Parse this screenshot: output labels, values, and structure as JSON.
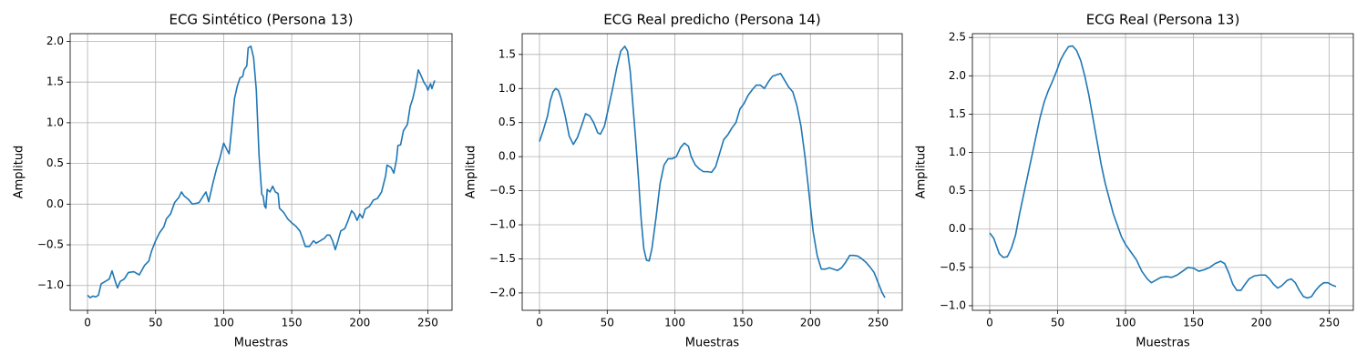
{
  "chart_data": [
    {
      "type": "line",
      "title": "ECG Sintético (Persona 13)",
      "xlabel": "Muestras",
      "ylabel": "Amplitud",
      "color": "#1f77b4",
      "grid": true,
      "x": [
        0,
        2,
        4,
        6,
        8,
        10,
        13,
        16,
        18,
        20,
        22,
        24,
        27,
        30,
        34,
        38,
        42,
        45,
        47,
        50,
        53,
        56,
        58,
        61,
        64,
        67,
        69,
        71,
        74,
        77,
        80,
        82,
        85,
        87,
        89,
        92,
        95,
        97,
        100,
        103,
        104,
        106,
        108,
        110,
        112,
        114,
        115,
        117,
        118,
        120,
        122,
        124,
        126,
        128,
        129,
        130,
        131,
        132,
        134,
        136,
        138,
        140,
        141,
        144,
        147,
        150,
        153,
        156,
        158,
        160,
        163,
        166,
        168,
        171,
        174,
        176,
        178,
        180,
        182,
        184,
        186,
        189,
        191,
        194,
        196,
        198,
        200,
        202,
        204,
        207,
        210,
        213,
        216,
        219,
        220,
        223,
        225,
        227,
        228,
        230,
        232,
        235,
        237,
        239,
        241,
        243,
        245,
        247,
        249,
        250,
        252,
        253,
        255
      ],
      "values": [
        -1.12,
        -1.15,
        -1.13,
        -1.14,
        -1.12,
        -0.98,
        -0.95,
        -0.92,
        -0.82,
        -0.93,
        -1.03,
        -0.95,
        -0.92,
        -0.84,
        -0.83,
        -0.87,
        -0.75,
        -0.7,
        -0.58,
        -0.45,
        -0.35,
        -0.28,
        -0.18,
        -0.12,
        0.02,
        0.08,
        0.15,
        0.1,
        0.06,
        0.0,
        0.01,
        0.02,
        0.1,
        0.15,
        0.03,
        0.25,
        0.45,
        0.55,
        0.75,
        0.65,
        0.62,
        0.95,
        1.3,
        1.45,
        1.55,
        1.57,
        1.65,
        1.7,
        1.92,
        1.94,
        1.8,
        1.4,
        0.6,
        0.12,
        0.1,
        -0.02,
        -0.05,
        0.18,
        0.15,
        0.22,
        0.15,
        0.13,
        -0.05,
        -0.1,
        -0.18,
        -0.23,
        -0.27,
        -0.33,
        -0.42,
        -0.52,
        -0.52,
        -0.45,
        -0.48,
        -0.45,
        -0.42,
        -0.38,
        -0.38,
        -0.45,
        -0.56,
        -0.45,
        -0.33,
        -0.3,
        -0.22,
        -0.08,
        -0.12,
        -0.2,
        -0.12,
        -0.17,
        -0.06,
        -0.03,
        0.05,
        0.07,
        0.15,
        0.35,
        0.48,
        0.45,
        0.38,
        0.55,
        0.72,
        0.73,
        0.9,
        0.98,
        1.2,
        1.3,
        1.45,
        1.65,
        1.58,
        1.5,
        1.45,
        1.4,
        1.48,
        1.42,
        1.52
      ],
      "xlim": [
        -12.75,
        267.75
      ],
      "xticks": [
        0,
        50,
        100,
        150,
        200,
        250
      ],
      "ylim": [
        -1.305,
        2.095
      ],
      "yticks": [
        {
          "value": -1.0,
          "label": "−1.0"
        },
        {
          "value": -0.5,
          "label": "−0.5"
        },
        {
          "value": 0.0,
          "label": "0.0"
        },
        0.5,
        {
          "value": 1.0,
          "label": "1.0"
        },
        1.5,
        {
          "value": 2.0,
          "label": "2.0"
        }
      ]
    },
    {
      "type": "line",
      "title": "ECG Real predicho (Persona 14)",
      "xlabel": "Muestras",
      "ylabel": "Amplitud",
      "color": "#1f77b4",
      "grid": true,
      "x": [
        0,
        3,
        6,
        8,
        10,
        12,
        14,
        16,
        19,
        22,
        25,
        28,
        31,
        34,
        37,
        40,
        43,
        45,
        48,
        51,
        54,
        57,
        60,
        63,
        65,
        67,
        69,
        71,
        73,
        75,
        77,
        79,
        81,
        83,
        86,
        89,
        92,
        95,
        98,
        101,
        104,
        107,
        110,
        112,
        115,
        118,
        121,
        124,
        127,
        130,
        133,
        136,
        139,
        142,
        145,
        148,
        151,
        154,
        157,
        160,
        163,
        166,
        169,
        172,
        175,
        178,
        181,
        184,
        187,
        190,
        193,
        196,
        199,
        202,
        205,
        208,
        211,
        214,
        217,
        220,
        223,
        226,
        229,
        232,
        235,
        238,
        241,
        244,
        247,
        250,
        253,
        255
      ],
      "values": [
        0.22,
        0.4,
        0.6,
        0.82,
        0.95,
        1.0,
        0.97,
        0.85,
        0.6,
        0.3,
        0.18,
        0.28,
        0.45,
        0.63,
        0.6,
        0.5,
        0.35,
        0.33,
        0.45,
        0.72,
        1.0,
        1.3,
        1.55,
        1.62,
        1.55,
        1.25,
        0.75,
        0.25,
        -0.3,
        -0.9,
        -1.35,
        -1.52,
        -1.53,
        -1.35,
        -0.9,
        -0.4,
        -0.12,
        -0.03,
        -0.03,
        0.0,
        0.13,
        0.2,
        0.15,
        0.0,
        -0.12,
        -0.18,
        -0.22,
        -0.22,
        -0.23,
        -0.15,
        0.05,
        0.25,
        0.32,
        0.42,
        0.5,
        0.7,
        0.78,
        0.9,
        0.98,
        1.05,
        1.05,
        1.0,
        1.1,
        1.18,
        1.2,
        1.22,
        1.12,
        1.02,
        0.95,
        0.75,
        0.45,
        0.0,
        -0.55,
        -1.1,
        -1.45,
        -1.65,
        -1.65,
        -1.63,
        -1.65,
        -1.67,
        -1.63,
        -1.55,
        -1.45,
        -1.45,
        -1.46,
        -1.5,
        -1.55,
        -1.62,
        -1.7,
        -1.85,
        -2.0,
        -2.07
      ],
      "xlim": [
        -12.75,
        267.75
      ],
      "xticks": [
        0,
        50,
        100,
        150,
        200,
        250
      ],
      "ylim": [
        -2.255,
        1.805
      ],
      "yticks": [
        {
          "value": -2.0,
          "label": "−2.0"
        },
        {
          "value": -1.5,
          "label": "−1.5"
        },
        {
          "value": -1.0,
          "label": "−1.0"
        },
        {
          "value": -0.5,
          "label": "−0.5"
        },
        {
          "value": 0.0,
          "label": "0.0"
        },
        0.5,
        {
          "value": 1.0,
          "label": "1.0"
        },
        1.5
      ]
    },
    {
      "type": "line",
      "title": "ECG Real (Persona 13)",
      "xlabel": "Muestras",
      "ylabel": "Amplitud",
      "color": "#1f77b4",
      "grid": true,
      "x": [
        0,
        3,
        5,
        7,
        10,
        13,
        16,
        19,
        22,
        25,
        28,
        31,
        34,
        37,
        40,
        43,
        46,
        49,
        52,
        55,
        58,
        61,
        64,
        67,
        70,
        73,
        76,
        79,
        82,
        85,
        88,
        91,
        94,
        97,
        100,
        104,
        108,
        112,
        116,
        119,
        122,
        126,
        130,
        134,
        138,
        142,
        146,
        150,
        154,
        158,
        162,
        166,
        170,
        173,
        176,
        179,
        182,
        185,
        188,
        191,
        195,
        199,
        203,
        206,
        209,
        212,
        215,
        219,
        222,
        225,
        228,
        231,
        234,
        237,
        240,
        243,
        246,
        249,
        252,
        255
      ],
      "values": [
        -0.05,
        -0.12,
        -0.22,
        -0.32,
        -0.37,
        -0.36,
        -0.25,
        -0.08,
        0.2,
        0.45,
        0.7,
        0.95,
        1.2,
        1.45,
        1.65,
        1.8,
        1.92,
        2.05,
        2.2,
        2.3,
        2.38,
        2.39,
        2.33,
        2.2,
        2.0,
        1.75,
        1.45,
        1.15,
        0.85,
        0.6,
        0.4,
        0.2,
        0.05,
        -0.1,
        -0.2,
        -0.3,
        -0.4,
        -0.55,
        -0.65,
        -0.7,
        -0.67,
        -0.63,
        -0.62,
        -0.63,
        -0.6,
        -0.55,
        -0.5,
        -0.51,
        -0.55,
        -0.53,
        -0.5,
        -0.45,
        -0.42,
        -0.45,
        -0.57,
        -0.72,
        -0.8,
        -0.8,
        -0.72,
        -0.65,
        -0.61,
        -0.6,
        -0.6,
        -0.65,
        -0.72,
        -0.77,
        -0.74,
        -0.67,
        -0.65,
        -0.7,
        -0.8,
        -0.88,
        -0.9,
        -0.88,
        -0.8,
        -0.74,
        -0.7,
        -0.7,
        -0.73,
        -0.75
      ],
      "xlim": [
        -12.75,
        267.75
      ],
      "xticks": [
        0,
        50,
        100,
        150,
        200,
        250
      ],
      "ylim": [
        -1.06,
        2.55
      ],
      "yticks": [
        {
          "value": -1.0,
          "label": "−1.0"
        },
        {
          "value": -0.5,
          "label": "−0.5"
        },
        {
          "value": 0.0,
          "label": "0.0"
        },
        0.5,
        {
          "value": 1.0,
          "label": "1.0"
        },
        1.5,
        {
          "value": 2.0,
          "label": "2.0"
        },
        2.5
      ]
    }
  ]
}
